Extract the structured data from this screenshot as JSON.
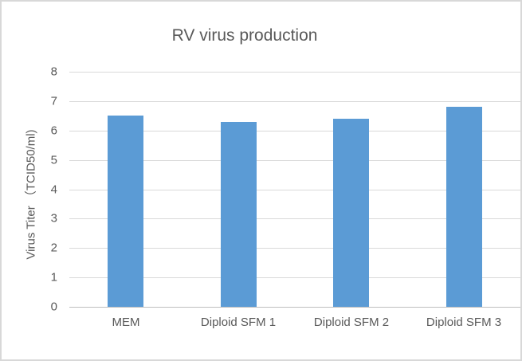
{
  "chart_data": {
    "type": "bar",
    "title": "RV virus production",
    "ylabel": "Virus Titer （TCID50/ml)",
    "xlabel": "",
    "categories": [
      "MEM",
      "Diploid SFM 1",
      "Diploid SFM  2",
      "Diploid SFM  3"
    ],
    "values": [
      6.5,
      6.3,
      6.4,
      6.8
    ],
    "ylim": [
      0,
      8
    ],
    "yticks": [
      0,
      1,
      2,
      3,
      4,
      5,
      6,
      7,
      8
    ],
    "grid": true,
    "legend": "none",
    "colors": {
      "bar": "#5B9BD5",
      "gridline": "#D9D9D9",
      "axis_line": "#BFBFBF",
      "text": "#595959",
      "background": "#FFFFFF",
      "border": "#D8D8D8"
    }
  }
}
